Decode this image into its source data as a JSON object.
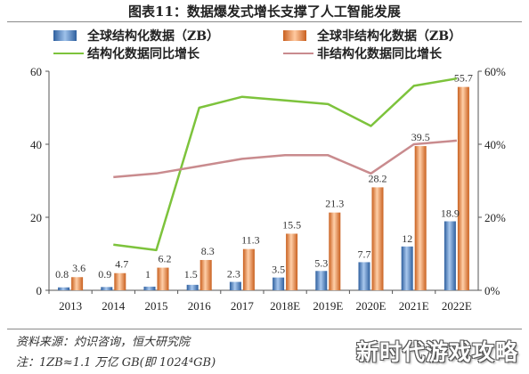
{
  "chart_data": {
    "type": "bar",
    "title": "图表11：数据爆发式增长支撑了人工智能发展",
    "categories": [
      "2013",
      "2014",
      "2015",
      "2016",
      "2017",
      "2018E",
      "2019E",
      "2020E",
      "2021E",
      "2022E"
    ],
    "ylim": [
      0,
      60
    ],
    "y_ticks": [
      0,
      20,
      40,
      60
    ],
    "y2lim": [
      0,
      60
    ],
    "y2_ticks": [
      "0%",
      "20%",
      "40%",
      "60%"
    ],
    "series": [
      {
        "name": "全球结构化数据（ZB）",
        "type": "bar",
        "color": "#4a7ebf",
        "values": [
          0.8,
          0.9,
          1,
          1.5,
          2.3,
          3.5,
          5.3,
          7.7,
          12,
          18.9
        ],
        "labels": [
          "0.8",
          "0.9",
          "1",
          "1.5",
          "2.3",
          "3.5",
          "5.3",
          "7.7",
          "12",
          "18.9"
        ]
      },
      {
        "name": "全球非结构化数据（ZB）",
        "type": "bar",
        "color": "#e8823f",
        "values": [
          3.6,
          4.7,
          6.2,
          8.3,
          11.3,
          15.5,
          21.3,
          28.2,
          39.5,
          55.7
        ],
        "labels": [
          "3.6",
          "4.7",
          "6.2",
          "8.3",
          "11.3",
          "15.5",
          "21.3",
          "28.2",
          "39.5",
          "55.7"
        ]
      },
      {
        "name": "结构化数据同比增长",
        "type": "line",
        "axis": "right",
        "color": "#7dc33c",
        "values": [
          null,
          12.5,
          11,
          50,
          53,
          52,
          51,
          45,
          56,
          58
        ]
      },
      {
        "name": "非结构化数据同比增长",
        "type": "line",
        "axis": "right",
        "color": "#c98b8e",
        "values": [
          null,
          31,
          32,
          34,
          36,
          37,
          37,
          32,
          40,
          41
        ]
      }
    ],
    "legend": "top"
  },
  "footnotes": {
    "source": "资料来源：灼识咨询，恒大研究院",
    "note": "注：1ZB≈1.1 万亿 GB(即 1024⁴GB)"
  },
  "watermark": "新时代游戏攻略"
}
